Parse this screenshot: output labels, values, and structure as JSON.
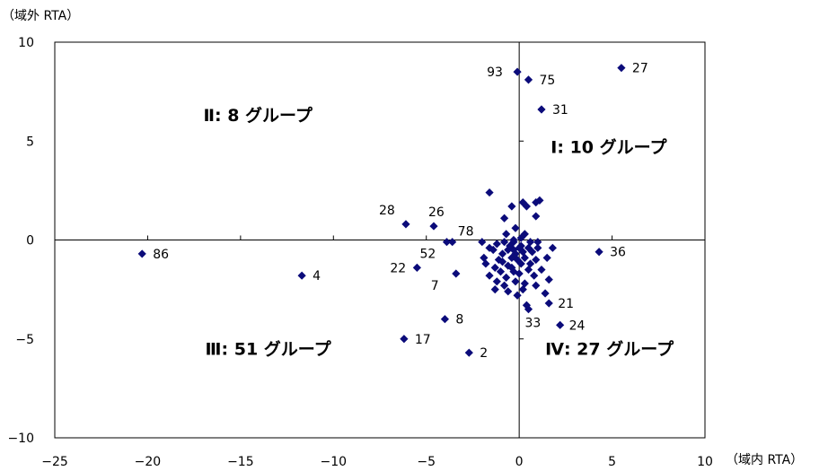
{
  "chart_data": {
    "type": "scatter",
    "title": "",
    "xlabel": "（域内 RTA）",
    "ylabel": "（域外 RTA）",
    "xlim": [
      -25,
      10
    ],
    "ylim": [
      -10,
      10
    ],
    "xticks": [
      -25,
      -20,
      -15,
      -10,
      -5,
      0,
      5,
      10
    ],
    "yticks": [
      -10,
      -5,
      0,
      5,
      10
    ],
    "xtick_labels": [
      "−25",
      "−20",
      "−15",
      "−10",
      "−5",
      "0",
      "5",
      "10"
    ],
    "ytick_labels": [
      "−10",
      "−5",
      "0",
      "5",
      "10"
    ],
    "grid": false,
    "marker_color": "#0b0b7a",
    "quadrant_labels": [
      {
        "id": "q2",
        "text": "Ⅱ: 8 グループ",
        "x": -17.0,
        "y": 6.0
      },
      {
        "id": "q1",
        "text": "Ⅰ: 10 グループ",
        "x": 1.7,
        "y": 4.4
      },
      {
        "id": "q3",
        "text": "Ⅲ: 51 グループ",
        "x": -16.9,
        "y": -5.8
      },
      {
        "id": "q4",
        "text": "Ⅳ: 27 グループ",
        "x": 1.4,
        "y": -5.8
      }
    ],
    "points": [
      {
        "x": 5.5,
        "y": 8.7,
        "label": "27"
      },
      {
        "x": -0.1,
        "y": 8.5,
        "label": "93"
      },
      {
        "x": 0.5,
        "y": 8.1,
        "label": "75"
      },
      {
        "x": 1.2,
        "y": 6.6,
        "label": "31"
      },
      {
        "x": 4.3,
        "y": -0.6,
        "label": "36"
      },
      {
        "x": -20.3,
        "y": -0.7,
        "label": "86"
      },
      {
        "x": -11.7,
        "y": -1.8,
        "label": "4"
      },
      {
        "x": -6.1,
        "y": 0.8,
        "label": "28"
      },
      {
        "x": -4.6,
        "y": 0.7,
        "label": "26"
      },
      {
        "x": -3.6,
        "y": -0.1,
        "label": "78"
      },
      {
        "x": -3.9,
        "y": -0.1,
        "label": "52"
      },
      {
        "x": -5.5,
        "y": -1.4,
        "label": "22"
      },
      {
        "x": -3.4,
        "y": -1.7,
        "label": "7"
      },
      {
        "x": -4.0,
        "y": -4.0,
        "label": "8"
      },
      {
        "x": -6.2,
        "y": -5.0,
        "label": "17"
      },
      {
        "x": -2.7,
        "y": -5.7,
        "label": "2"
      },
      {
        "x": 1.6,
        "y": -3.2,
        "label": "21"
      },
      {
        "x": 2.2,
        "y": -4.3,
        "label": "24"
      },
      {
        "x": 0.5,
        "y": -3.5,
        "label": "33"
      },
      {
        "x": -1.6,
        "y": 2.4,
        "label": ""
      },
      {
        "x": -0.4,
        "y": 1.7,
        "label": ""
      },
      {
        "x": 0.2,
        "y": 1.9,
        "label": ""
      },
      {
        "x": 0.4,
        "y": 1.7,
        "label": ""
      },
      {
        "x": 0.9,
        "y": 1.9,
        "label": ""
      },
      {
        "x": 1.1,
        "y": 2.0,
        "label": ""
      },
      {
        "x": 0.9,
        "y": 1.2,
        "label": ""
      },
      {
        "x": -0.8,
        "y": 1.1,
        "label": ""
      },
      {
        "x": -0.2,
        "y": 0.6,
        "label": ""
      },
      {
        "x": -0.7,
        "y": 0.3,
        "label": ""
      },
      {
        "x": 0.3,
        "y": 0.3,
        "label": ""
      },
      {
        "x": 0.6,
        "y": -0.1,
        "label": ""
      },
      {
        "x": 1.0,
        "y": -0.1,
        "label": ""
      },
      {
        "x": -0.3,
        "y": -0.1,
        "label": ""
      },
      {
        "x": -1.2,
        "y": -0.2,
        "label": ""
      },
      {
        "x": 0.1,
        "y": -0.3,
        "label": ""
      },
      {
        "x": 0.0,
        "y": -0.4,
        "label": ""
      },
      {
        "x": -0.6,
        "y": -0.5,
        "label": ""
      },
      {
        "x": -1.4,
        "y": -0.5,
        "label": ""
      },
      {
        "x": -0.9,
        "y": -0.7,
        "label": ""
      },
      {
        "x": 0.7,
        "y": -0.6,
        "label": ""
      },
      {
        "x": 1.8,
        "y": -0.4,
        "label": ""
      },
      {
        "x": -0.4,
        "y": -0.9,
        "label": ""
      },
      {
        "x": 0.3,
        "y": -0.9,
        "label": ""
      },
      {
        "x": -1.1,
        "y": -1.0,
        "label": ""
      },
      {
        "x": 0.9,
        "y": -1.0,
        "label": ""
      },
      {
        "x": 1.5,
        "y": -0.9,
        "label": ""
      },
      {
        "x": -1.8,
        "y": -1.2,
        "label": ""
      },
      {
        "x": -0.6,
        "y": -1.3,
        "label": ""
      },
      {
        "x": 0.1,
        "y": -1.2,
        "label": ""
      },
      {
        "x": -1.3,
        "y": -1.4,
        "label": ""
      },
      {
        "x": -1.0,
        "y": -1.6,
        "label": ""
      },
      {
        "x": -0.3,
        "y": -1.6,
        "label": ""
      },
      {
        "x": 0.5,
        "y": -1.5,
        "label": ""
      },
      {
        "x": 1.2,
        "y": -1.5,
        "label": ""
      },
      {
        "x": -1.6,
        "y": -1.8,
        "label": ""
      },
      {
        "x": -0.7,
        "y": -1.9,
        "label": ""
      },
      {
        "x": 0.8,
        "y": -1.8,
        "label": ""
      },
      {
        "x": -1.2,
        "y": -2.1,
        "label": ""
      },
      {
        "x": -0.2,
        "y": -2.1,
        "label": ""
      },
      {
        "x": 0.3,
        "y": -2.2,
        "label": ""
      },
      {
        "x": 1.6,
        "y": -2.0,
        "label": ""
      },
      {
        "x": -0.8,
        "y": -2.3,
        "label": ""
      },
      {
        "x": -1.3,
        "y": -2.5,
        "label": ""
      },
      {
        "x": 1.4,
        "y": -2.7,
        "label": ""
      },
      {
        "x": -0.1,
        "y": -2.8,
        "label": ""
      },
      {
        "x": 0.4,
        "y": -3.3,
        "label": ""
      },
      {
        "x": -2.0,
        "y": -0.1,
        "label": ""
      },
      {
        "x": -1.6,
        "y": -0.4,
        "label": ""
      },
      {
        "x": -0.3,
        "y": 0.0,
        "label": ""
      },
      {
        "x": 0.1,
        "y": 0.1,
        "label": ""
      },
      {
        "x": -0.5,
        "y": -0.3,
        "label": ""
      },
      {
        "x": 0.2,
        "y": -0.6,
        "label": ""
      },
      {
        "x": -0.2,
        "y": -0.7,
        "label": ""
      },
      {
        "x": 0.5,
        "y": -0.4,
        "label": ""
      },
      {
        "x": -0.8,
        "y": -0.1,
        "label": ""
      },
      {
        "x": -0.1,
        "y": -1.0,
        "label": ""
      },
      {
        "x": 0.6,
        "y": -1.2,
        "label": ""
      },
      {
        "x": -0.4,
        "y": -1.4,
        "label": ""
      },
      {
        "x": -1.9,
        "y": -0.9,
        "label": ""
      },
      {
        "x": 0.0,
        "y": -1.7,
        "label": ""
      },
      {
        "x": -0.9,
        "y": -1.1,
        "label": ""
      },
      {
        "x": 1.0,
        "y": -0.4,
        "label": ""
      },
      {
        "x": 0.2,
        "y": -2.5,
        "label": ""
      },
      {
        "x": -0.6,
        "y": -2.6,
        "label": ""
      },
      {
        "x": 0.9,
        "y": -2.3,
        "label": ""
      },
      {
        "x": -0.3,
        "y": -0.5,
        "label": ""
      }
    ]
  }
}
